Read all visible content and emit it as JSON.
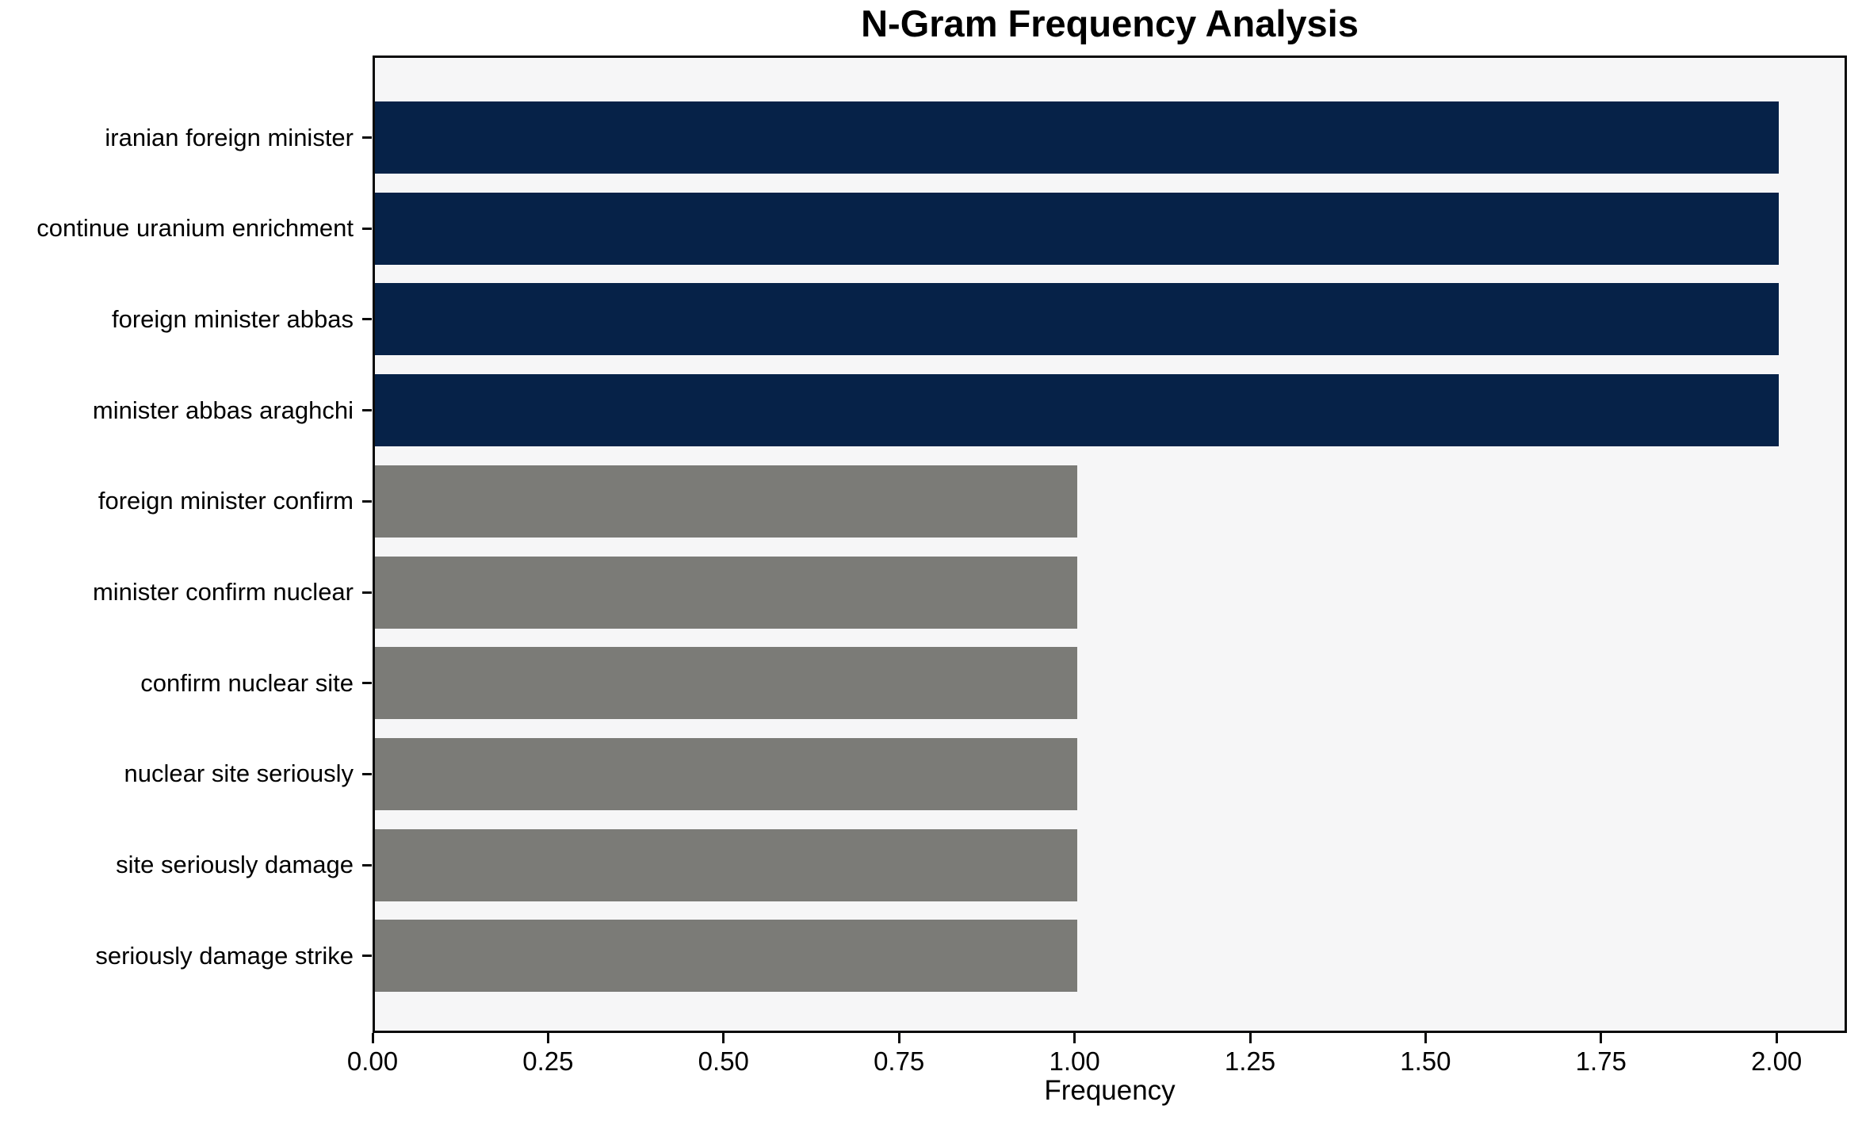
{
  "chart_data": {
    "type": "bar",
    "orientation": "horizontal",
    "title": "N-Gram Frequency Analysis",
    "xlabel": "Frequency",
    "ylabel": "",
    "categories": [
      "iranian foreign minister",
      "continue uranium enrichment",
      "foreign minister abbas",
      "minister abbas araghchi",
      "foreign minister confirm",
      "minister confirm nuclear",
      "confirm nuclear site",
      "nuclear site seriously",
      "site seriously damage",
      "seriously damage strike"
    ],
    "values": [
      2,
      2,
      2,
      2,
      1,
      1,
      1,
      1,
      1,
      1
    ],
    "bar_colors": [
      "#062248",
      "#062248",
      "#062248",
      "#062248",
      "#7b7b77",
      "#7b7b77",
      "#7b7b77",
      "#7b7b77",
      "#7b7b77",
      "#7b7b77"
    ],
    "xticks": [
      "0.00",
      "0.25",
      "0.50",
      "0.75",
      "1.00",
      "1.25",
      "1.50",
      "1.75",
      "2.00"
    ],
    "xtick_values": [
      0,
      0.25,
      0.5,
      0.75,
      1.0,
      1.25,
      1.5,
      1.75,
      2.0
    ],
    "xlim": [
      0,
      2.1
    ],
    "grid": false,
    "legend": null,
    "plot_background": "#f6f6f7",
    "figure_background": "#ffffff",
    "colors": {
      "high_frequency_bar": "#062248",
      "low_frequency_bar": "#7b7b77",
      "axis": "#0a0a0a",
      "text": "#000000"
    }
  }
}
